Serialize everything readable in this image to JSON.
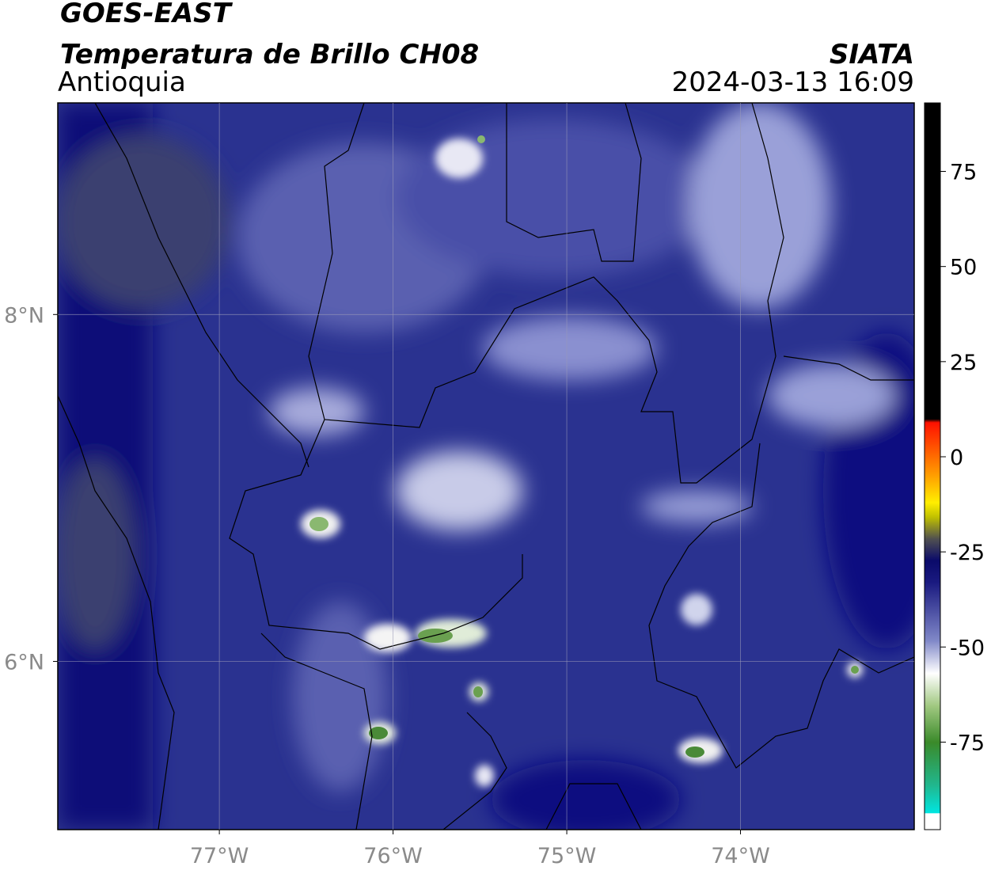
{
  "header": {
    "title": "GOES-EAST",
    "subtitle": "Temperatura de Brillo CH08",
    "region": "Antioquia",
    "source": "SIATA",
    "datetime": "2024-03-13 16:09"
  },
  "map": {
    "xlim": [
      -77.93,
      -73.0
    ],
    "ylim": [
      5.03,
      9.22
    ],
    "xticks": [
      {
        "value": -77,
        "label": "77°W"
      },
      {
        "value": -76,
        "label": "76°W"
      },
      {
        "value": -75,
        "label": "75°W"
      },
      {
        "value": -74,
        "label": "74°W"
      }
    ],
    "yticks": [
      {
        "value": 8,
        "label": "8°N"
      },
      {
        "value": 6,
        "label": "6°N"
      }
    ]
  },
  "colorbar": {
    "lim": [
      -98,
      93
    ],
    "ticks": [
      75,
      50,
      25,
      0,
      -25,
      -50,
      -75
    ]
  }
}
